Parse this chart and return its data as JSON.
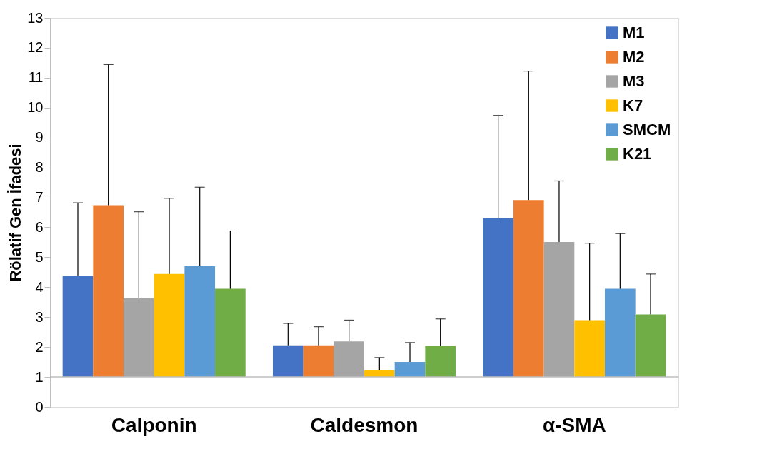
{
  "chart_data": {
    "type": "bar",
    "ylabel": "Rölatif Gen İfadesi",
    "categories": [
      "Calponin",
      "Caldesmon",
      "α-SMA"
    ],
    "series": [
      {
        "name": "M1",
        "color": "#4472c4",
        "base": [
          1,
          1,
          1
        ],
        "values": [
          3.38,
          1.06,
          5.31
        ],
        "errors": [
          [
            4.38,
            6.82
          ],
          [
            2.06,
            2.79
          ],
          [
            6.31,
            9.74
          ]
        ]
      },
      {
        "name": "M2",
        "color": "#ed7d31",
        "base": [
          1,
          1,
          1
        ],
        "values": [
          5.74,
          1.06,
          5.91
        ],
        "errors": [
          [
            6.74,
            11.44
          ],
          [
            2.06,
            2.68
          ],
          [
            6.91,
            11.22
          ]
        ]
      },
      {
        "name": "M3",
        "color": "#a5a5a5",
        "base": [
          1,
          1,
          1
        ],
        "values": [
          2.63,
          1.19,
          4.51
        ],
        "errors": [
          [
            3.63,
            6.52
          ],
          [
            2.19,
            2.9
          ],
          [
            5.51,
            7.55
          ]
        ]
      },
      {
        "name": "K7",
        "color": "#ffc000",
        "base": [
          1,
          1,
          1
        ],
        "values": [
          3.44,
          0.22,
          1.9
        ],
        "errors": [
          [
            4.44,
            6.97
          ],
          [
            1.22,
            1.65
          ],
          [
            2.9,
            5.47
          ]
        ]
      },
      {
        "name": "SMCM",
        "color": "#5b9bd5",
        "base": [
          1,
          1,
          1
        ],
        "values": [
          3.7,
          0.5,
          2.95
        ],
        "errors": [
          [
            4.7,
            7.34
          ],
          [
            1.5,
            2.15
          ],
          [
            3.95,
            5.79
          ]
        ]
      },
      {
        "name": "K21",
        "color": "#70ad47",
        "base": [
          1,
          1,
          1
        ],
        "values": [
          2.95,
          1.04,
          2.09
        ],
        "errors": [
          [
            3.95,
            5.88
          ],
          [
            2.04,
            2.94
          ],
          [
            3.09,
            4.44
          ]
        ]
      }
    ],
    "ylim": [
      0,
      13
    ],
    "yticks": [
      0,
      1,
      2,
      3,
      4,
      5,
      6,
      7,
      8,
      9,
      10,
      11,
      12,
      13
    ],
    "ref_lines": [
      {
        "axis": "y",
        "value": 1,
        "color": "#bfbfbf"
      }
    ],
    "grid": false,
    "legend": "top right"
  }
}
